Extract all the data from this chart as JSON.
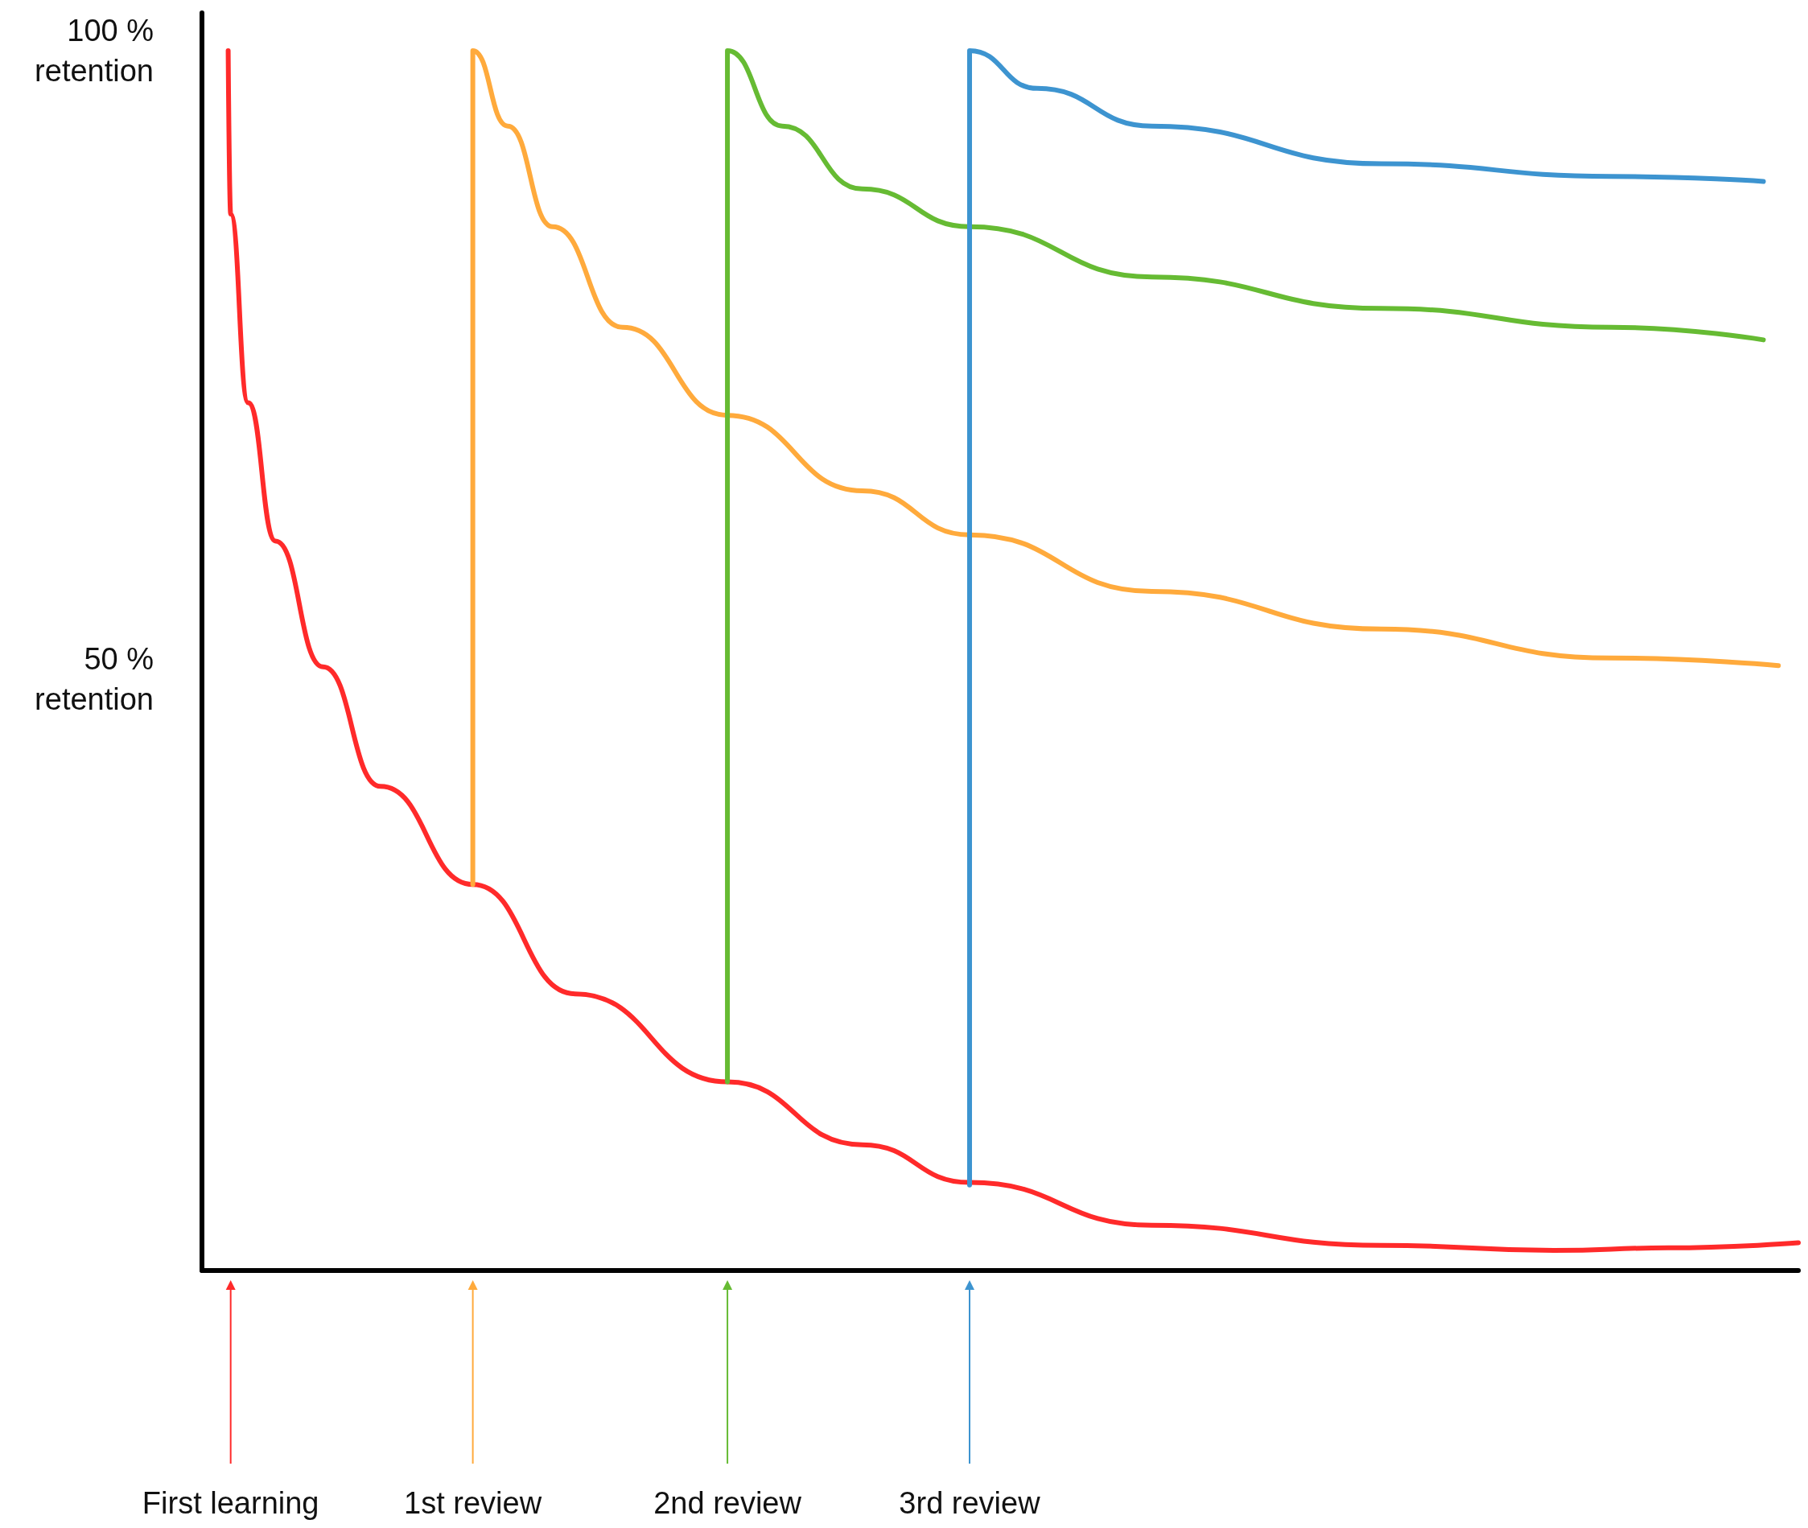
{
  "chart_data": {
    "type": "line",
    "xlim": [
      -0.115,
      6.28
    ],
    "ylim": [
      3,
      103
    ],
    "xticks": [
      {
        "value": 0,
        "label": "First learning"
      },
      {
        "value": 0.97,
        "label": "1st review"
      },
      {
        "value": 1.99,
        "label": "2nd review"
      },
      {
        "value": 2.96,
        "label": "3rd review"
      }
    ],
    "yticks": [
      {
        "value": 50,
        "label": "50 %\nretention"
      },
      {
        "value": 100,
        "label": "100 %\nretention"
      }
    ],
    "series": [
      {
        "color": "#ff2a2a",
        "x": [
          -0.01,
          0,
          0.07,
          0.18,
          0.37,
          0.6,
          0.97,
          1.38,
          1.99,
          2.53,
          2.96,
          3.69,
          4.61,
          5.3,
          5.76,
          6.28
        ],
        "values": [
          100,
          87,
          72,
          61,
          51,
          41.5,
          33.7,
          25,
          18,
          13,
          10,
          6.6,
          5,
          4.6,
          4.8,
          5.2
        ]
      },
      {
        "color": "#ffaa3c",
        "x": [
          0.97,
          0.97,
          1.11,
          1.29,
          1.57,
          1.99,
          2.53,
          2.96,
          3.69,
          4.61,
          5.53,
          6.2
        ],
        "values": [
          33.7,
          100,
          94,
          86,
          78,
          71,
          65,
          61.5,
          57,
          54,
          51.7,
          51.1
        ]
      },
      {
        "color": "#66bb33",
        "x": [
          1.99,
          1.99,
          2.21,
          2.53,
          2.96,
          3.69,
          4.61,
          5.53,
          6.14
        ],
        "values": [
          18,
          100,
          94,
          89,
          86,
          82,
          79.5,
          78,
          77
        ]
      },
      {
        "color": "#3d94d0",
        "x": [
          2.96,
          2.96,
          3.23,
          3.69,
          4.61,
          5.53,
          6.14
        ],
        "values": [
          9.8,
          100,
          97,
          94,
          91,
          90,
          89.6
        ]
      }
    ],
    "grid": false,
    "marker": "none",
    "line_style": "solid"
  }
}
